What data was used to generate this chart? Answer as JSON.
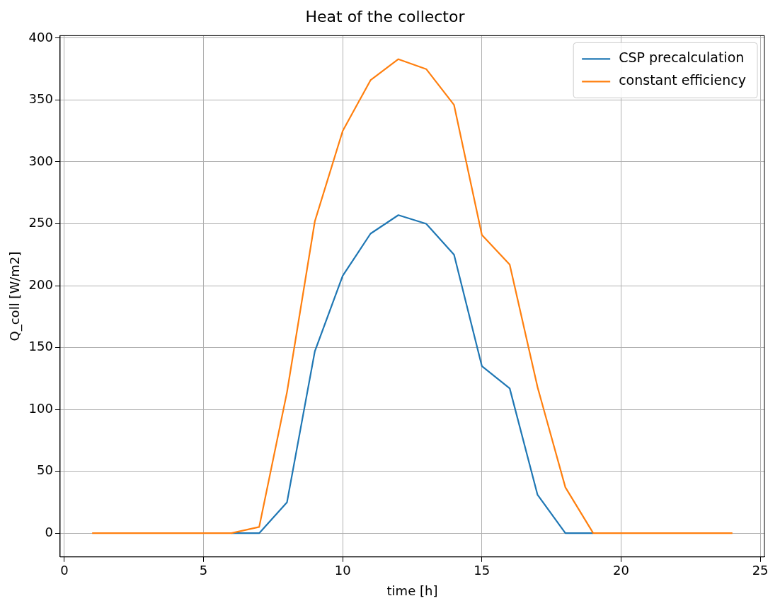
{
  "chart_data": {
    "type": "line",
    "title": "Heat of the collector",
    "xlabel": "time [h]",
    "ylabel": "Q_coll [W/m2]",
    "x": [
      1,
      2,
      3,
      4,
      5,
      6,
      7,
      8,
      9,
      10,
      11,
      12,
      13,
      14,
      15,
      16,
      17,
      18,
      19,
      20,
      21,
      22,
      23,
      24
    ],
    "series": [
      {
        "name": "CSP precalculation",
        "color": "#1f77b4",
        "values": [
          null,
          null,
          null,
          null,
          null,
          0,
          0,
          25,
          147,
          208,
          242,
          257,
          250,
          225,
          135,
          117,
          31,
          0,
          0,
          null,
          null,
          null,
          null,
          null
        ]
      },
      {
        "name": "constant efficiency",
        "color": "#ff7f0e",
        "values": [
          0,
          0,
          0,
          0,
          0,
          0,
          5,
          114,
          252,
          325,
          366,
          383,
          375,
          346,
          241,
          217,
          118,
          37,
          0,
          0,
          0,
          0,
          0,
          0
        ]
      }
    ],
    "xlim": [
      -0.15,
      25.15
    ],
    "xticks": [
      0,
      5,
      10,
      15,
      20,
      25
    ],
    "ylim": [
      -19.2,
      402
    ],
    "yticks": [
      0,
      50,
      100,
      150,
      200,
      250,
      300,
      350,
      400
    ],
    "grid": true,
    "legend": "top right",
    "marker": "none",
    "line_style": "solid"
  }
}
